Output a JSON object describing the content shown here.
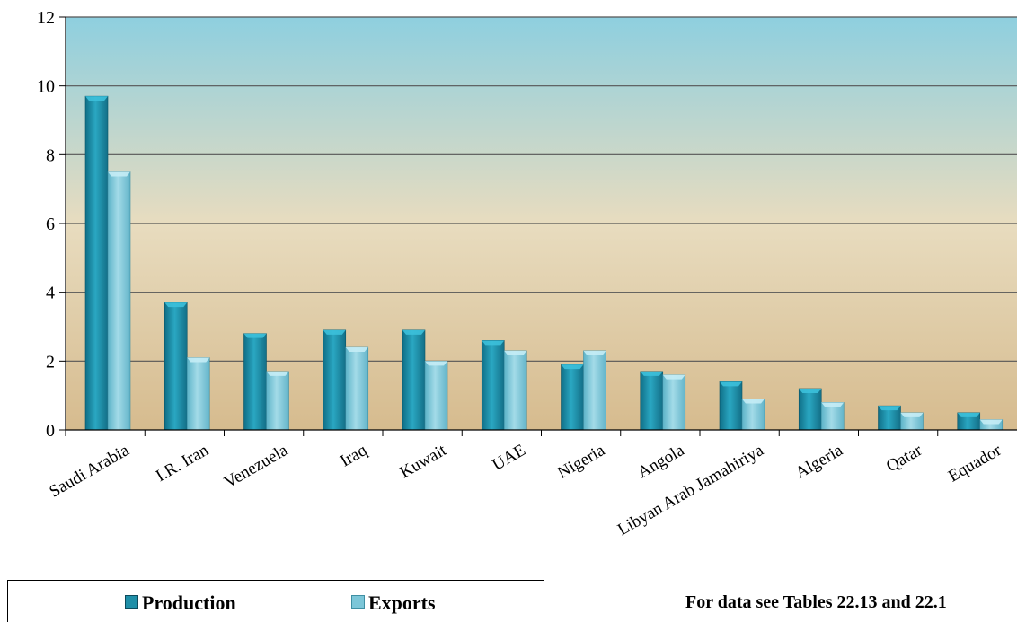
{
  "chart_data": {
    "type": "bar",
    "categories": [
      "Saudi Arabia",
      "I.R. Iran",
      "Venezuela",
      "Iraq",
      "Kuwait",
      "UAE",
      "Nigeria",
      "Angola",
      "Libyan Arab Jamahiriya",
      "Algeria",
      "Qatar",
      "Equador"
    ],
    "series": [
      {
        "name": "Production",
        "values": [
          9.7,
          3.7,
          2.8,
          2.9,
          2.9,
          2.6,
          1.9,
          1.7,
          1.4,
          1.2,
          0.7,
          0.5
        ],
        "color": "#1f8fa8"
      },
      {
        "name": "Exports",
        "values": [
          7.5,
          2.1,
          1.7,
          2.4,
          2.0,
          2.3,
          2.3,
          1.6,
          0.9,
          0.8,
          0.5,
          0.3
        ],
        "color": "#7cc6d8"
      }
    ],
    "yticks": [
      0,
      2,
      4,
      6,
      8,
      10,
      12
    ],
    "ylim": [
      0,
      12
    ],
    "grid": true,
    "legend_position": "bottom-left",
    "background_gradient": [
      "#8ecfdf",
      "#e6d8b8",
      "#d9bf93"
    ]
  },
  "legend": {
    "production_label": "Production",
    "exports_label": "Exports"
  },
  "footnote": "For data see Tables 22.13 and 22.1"
}
